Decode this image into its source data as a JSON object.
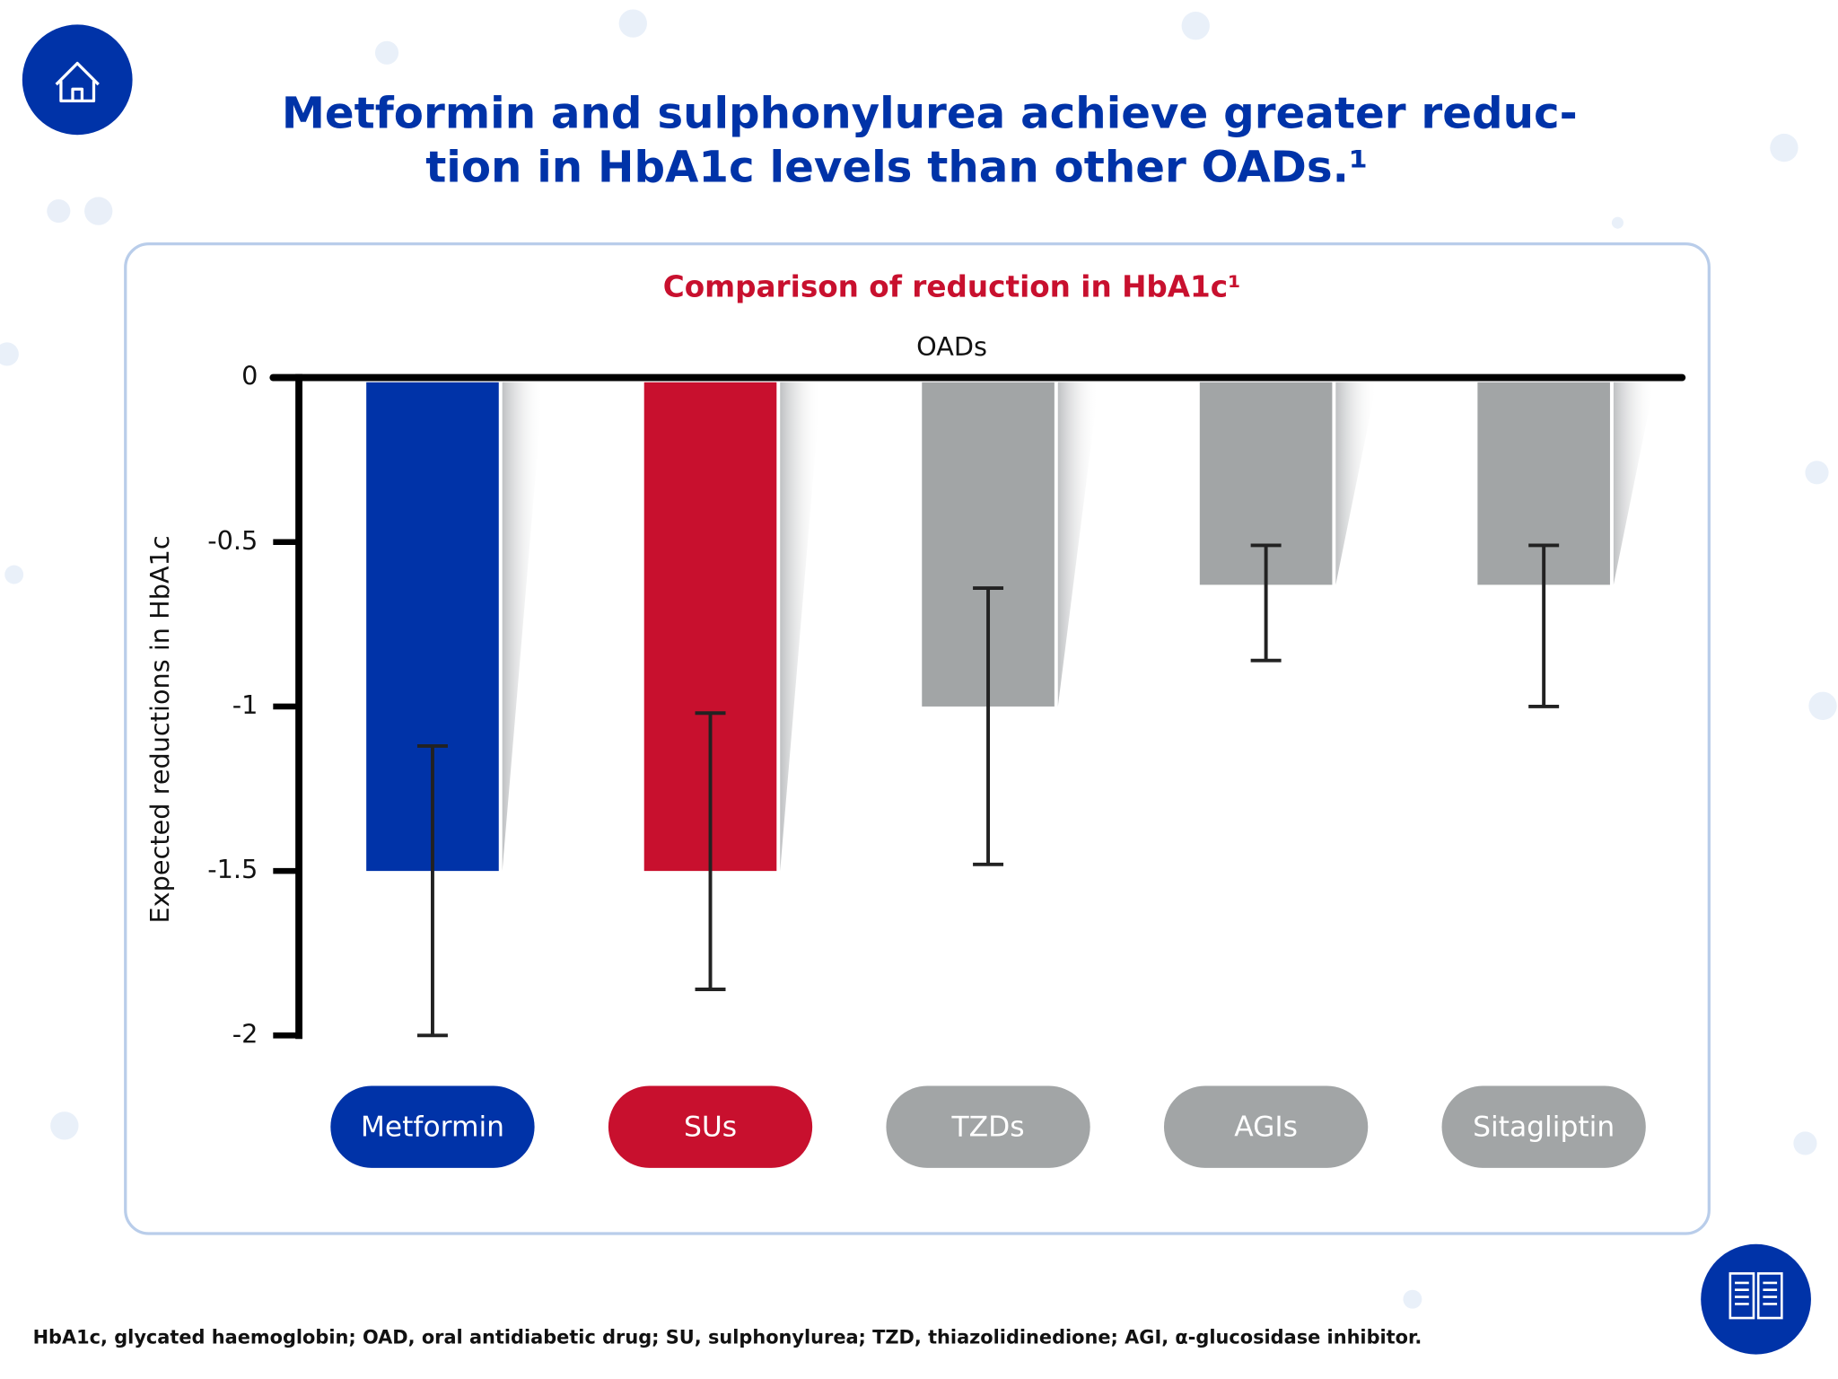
{
  "chart_data": {
    "type": "bar",
    "title_lines": [
      "Metformin and sulphonylurea achieve greater reduc-",
      "tion in HbA1c levels than other OADs.¹"
    ],
    "subtitle": "Comparison of reduction in HbA1c¹",
    "x_label": "OADs",
    "y_label": "Expected reductions in HbA1c",
    "categories": [
      "Metformin",
      "SUs",
      "TZDs",
      "AGIs",
      "Sitagliptin"
    ],
    "values": [
      -1.5,
      -1.5,
      -1.0,
      -0.63,
      -0.63
    ],
    "error_upper": [
      -1.12,
      -1.02,
      -0.64,
      -0.51,
      -0.51
    ],
    "error_lower": [
      -2.0,
      -1.86,
      -1.48,
      -0.86,
      -1.0
    ],
    "colors": [
      "#0033a8",
      "#c8102e",
      "#a2a5a6",
      "#a2a5a6",
      "#a2a5a6"
    ],
    "ylim": [
      -2,
      0
    ],
    "yticks": [
      0,
      -0.5,
      -1,
      -1.5,
      -2
    ],
    "footnote": "HbA1c, glycated haemoglobin; OAD, oral antidiabetic drug; SU, sulphonylurea; TZD, thiazolidinedione; AGI, α-glucosidase inhibitor."
  }
}
